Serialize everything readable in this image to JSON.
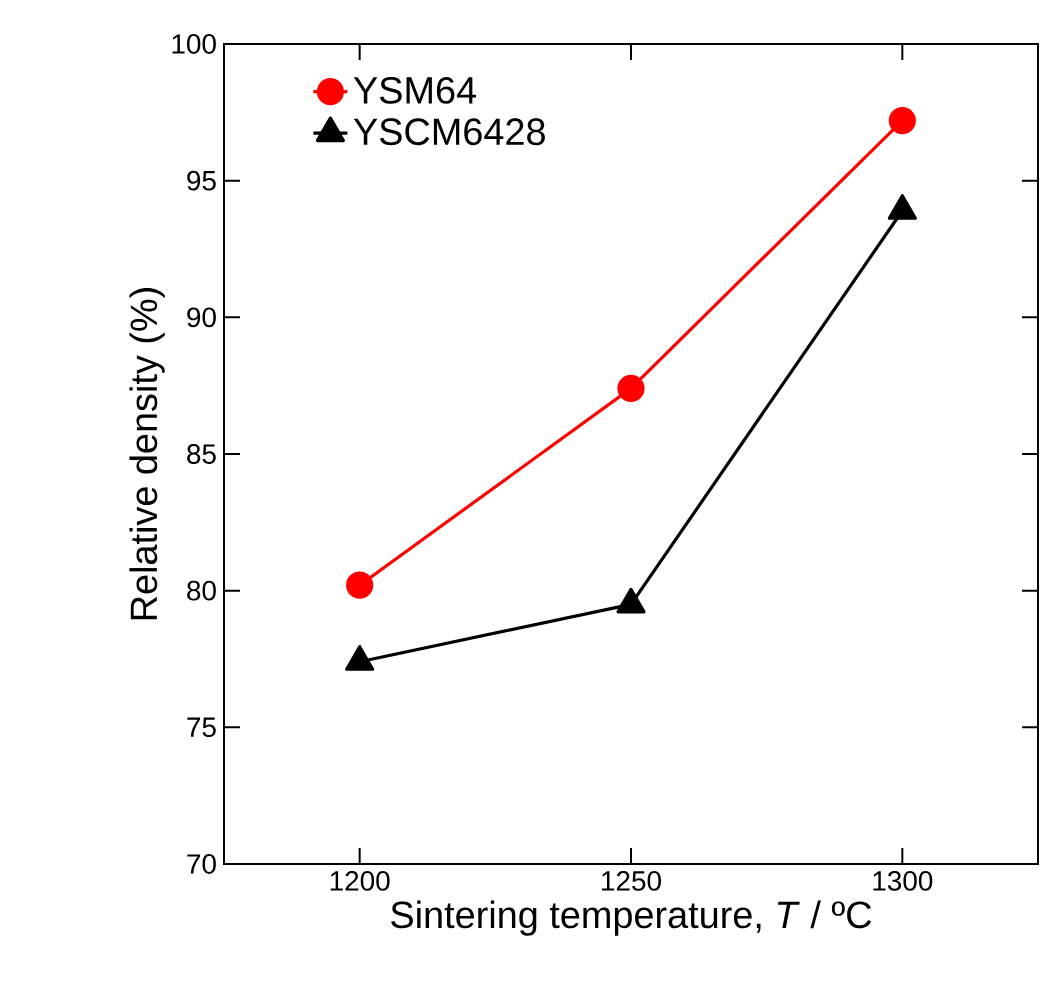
{
  "chart_data": {
    "type": "line",
    "xlabel": "Sintering temperature, *T* / ºC",
    "ylabel": "Relative density (%)",
    "x": [
      1200,
      1250,
      1300
    ],
    "series": [
      {
        "name": "YSM64",
        "color": "#ff0000",
        "marker": "circle",
        "values": [
          80.2,
          87.4,
          97.2
        ]
      },
      {
        "name": "YSCM6428",
        "color": "#000000",
        "marker": "triangle",
        "values": [
          77.4,
          79.5,
          93.9
        ]
      }
    ],
    "xlim": [
      1175,
      1325
    ],
    "ylim": [
      70,
      100
    ],
    "xticks": [
      1200,
      1250,
      1300
    ],
    "yticks": [
      70,
      75,
      80,
      85,
      90,
      95,
      100
    ],
    "grid": false,
    "legend": "top left",
    "line_style": "solid"
  }
}
